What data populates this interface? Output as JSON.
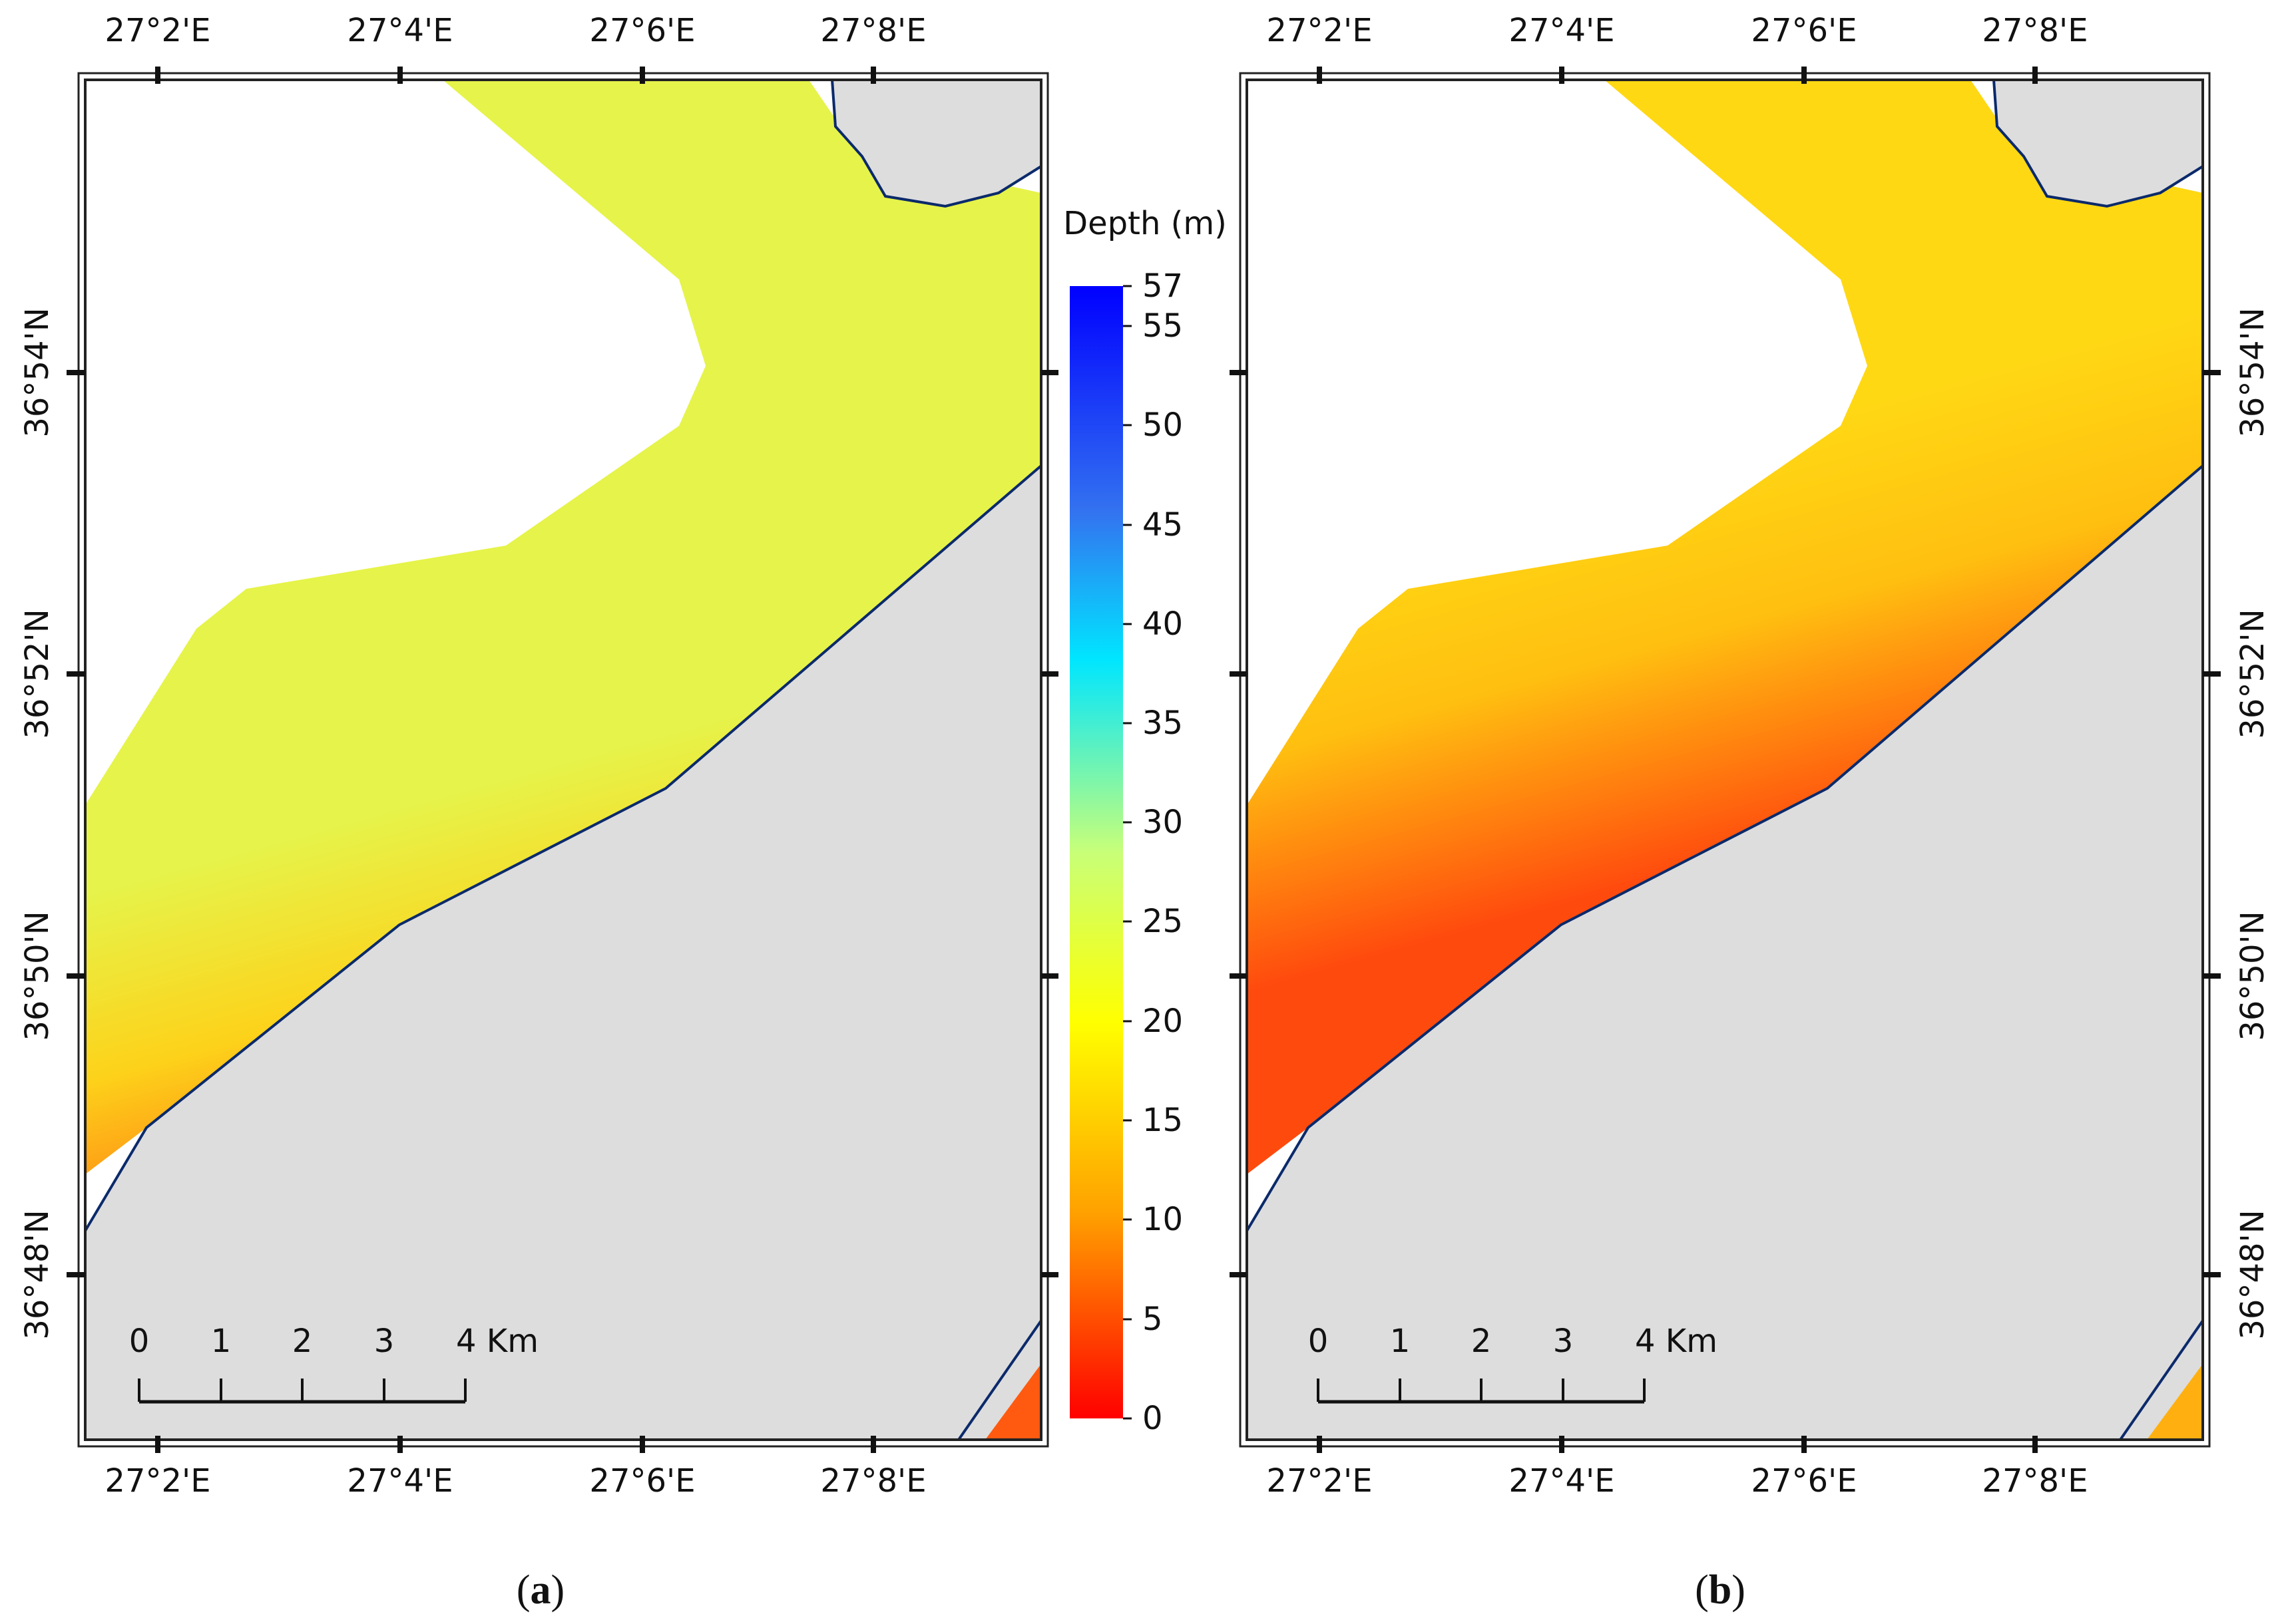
{
  "panels": [
    {
      "caption_letter": "a",
      "x_ticks": [
        "27°2'E",
        "27°4'E",
        "27°6'E",
        "27°8'E"
      ],
      "y_ticks": [
        "36°54'N",
        "36°52'N",
        "36°50'N",
        "36°48'N"
      ],
      "scale_bar": {
        "labels": [
          "0",
          "1",
          "2",
          "3",
          "4 Km"
        ]
      },
      "water_colors": {
        "offshore": "#e6f34a",
        "mid": "#fdd21a",
        "nearshore": "#ff5a10"
      }
    },
    {
      "caption_letter": "b",
      "x_ticks": [
        "27°2'E",
        "27°4'E",
        "27°6'E",
        "27°8'E"
      ],
      "y_ticks": [
        "36°54'N",
        "36°52'N",
        "36°50'N",
        "36°48'N"
      ],
      "scale_bar": {
        "labels": [
          "0",
          "1",
          "2",
          "3",
          "4 Km"
        ]
      },
      "water_colors": {
        "offshore": "#ffd814",
        "mid": "#ffbf10",
        "nearshore": "#ff4a0e"
      }
    }
  ],
  "legend": {
    "title": "Depth (m)",
    "ticks": [
      "57",
      "55",
      "50",
      "45",
      "40",
      "35",
      "30",
      "25",
      "20",
      "15",
      "10",
      "5",
      "0"
    ],
    "gradient": [
      "#0000ff",
      "#3373f0",
      "#00e6ff",
      "#c8ff78",
      "#ffff00",
      "#ffa000",
      "#ff0000"
    ]
  },
  "colors": {
    "land": "#dddddd",
    "coastline": "#0b2a6b",
    "frame": "#222222"
  }
}
